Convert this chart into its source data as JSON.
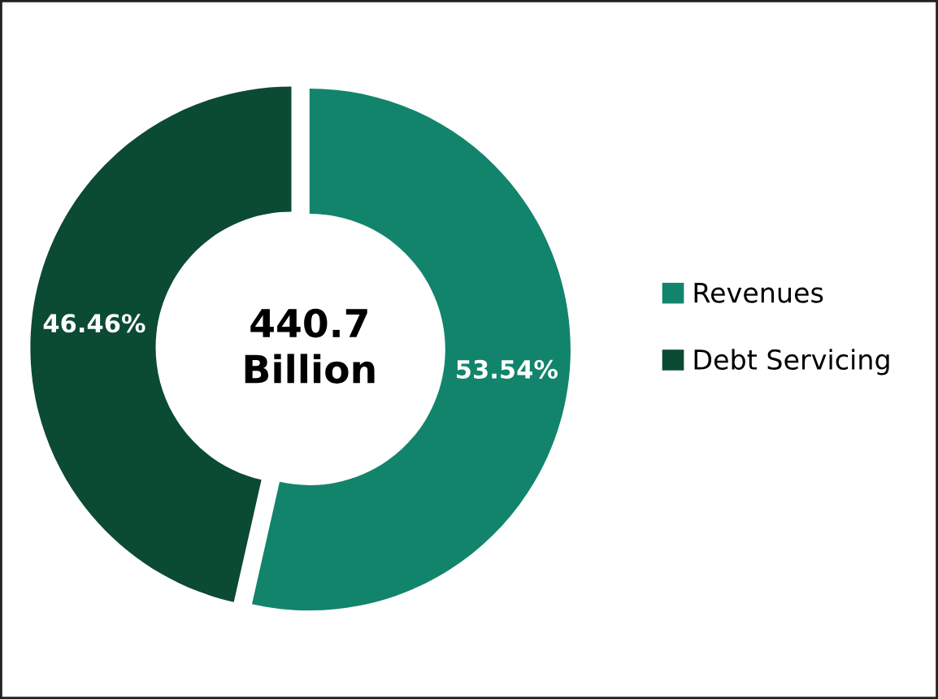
{
  "chart_data": {
    "type": "donut",
    "categories": [
      "Revenues",
      "Debt Servicing"
    ],
    "values": [
      53.54,
      46.46
    ],
    "colors": [
      "#12846b",
      "#0b4a33"
    ],
    "value_labels": [
      "53.54%",
      "46.46%"
    ],
    "annotations": [
      "440.7\nBillion"
    ],
    "legend": "right"
  }
}
